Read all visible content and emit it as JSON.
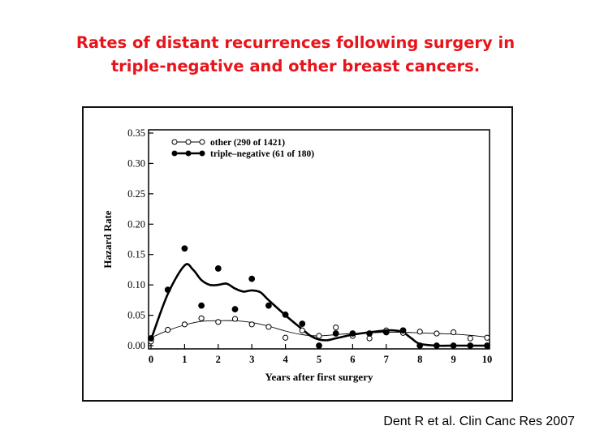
{
  "slide": {
    "title_line1": "Rates of distant recurrences following surgery in",
    "title_line2": "triple-negative and other breast cancers.",
    "citation": "Dent R et al. Clin Canc Res 2007",
    "title_color": "#e8141b"
  },
  "chart_data": {
    "type": "scatter",
    "title": "",
    "xlabel": "Years after first surgery",
    "ylabel": "Hazard Rate",
    "xlim": [
      0,
      10
    ],
    "ylim": [
      0,
      0.35
    ],
    "x_ticks": [
      "0",
      "1",
      "2",
      "3",
      "4",
      "5",
      "6",
      "7",
      "8",
      "9",
      "10"
    ],
    "y_ticks": [
      "0.00",
      "0.05",
      "0.10",
      "0.15",
      "0.20",
      "0.25",
      "0.30",
      "0.35"
    ],
    "legend_position": "top-left",
    "grid": false,
    "series": [
      {
        "name": "other (290 of 1421)",
        "marker": "open-circle",
        "line": "thin",
        "points": [
          [
            0,
            0.007
          ],
          [
            0.5,
            0.026
          ],
          [
            1,
            0.035
          ],
          [
            1.5,
            0.045
          ],
          [
            2,
            0.039
          ],
          [
            2.5,
            0.044
          ],
          [
            3,
            0.035
          ],
          [
            3.5,
            0.031
          ],
          [
            4,
            0.013
          ],
          [
            4.5,
            0.025
          ],
          [
            5,
            0.016
          ],
          [
            5.5,
            0.03
          ],
          [
            6,
            0.016
          ],
          [
            6.5,
            0.012
          ],
          [
            7,
            0.025
          ],
          [
            7.5,
            0.021
          ],
          [
            8,
            0.023
          ],
          [
            8.5,
            0.02
          ],
          [
            9,
            0.022
          ],
          [
            9.5,
            0.012
          ],
          [
            10,
            0.013
          ]
        ],
        "smooth_curve": [
          [
            0,
            0.013
          ],
          [
            0.5,
            0.025
          ],
          [
            1,
            0.034
          ],
          [
            1.5,
            0.04
          ],
          [
            2,
            0.041
          ],
          [
            2.5,
            0.041
          ],
          [
            3,
            0.038
          ],
          [
            3.5,
            0.032
          ],
          [
            4,
            0.024
          ],
          [
            4.5,
            0.018
          ],
          [
            5,
            0.016
          ],
          [
            5.5,
            0.018
          ],
          [
            6,
            0.02
          ],
          [
            6.5,
            0.021
          ],
          [
            7,
            0.022
          ],
          [
            7.5,
            0.022
          ],
          [
            8,
            0.021
          ],
          [
            8.5,
            0.02
          ],
          [
            9,
            0.019
          ],
          [
            9.5,
            0.017
          ],
          [
            10,
            0.014
          ]
        ]
      },
      {
        "name": "triple–negative (61 of 180)",
        "marker": "filled-circle",
        "line": "thick",
        "points": [
          [
            0,
            0.012
          ],
          [
            0.5,
            0.092
          ],
          [
            1,
            0.16
          ],
          [
            1.5,
            0.066
          ],
          [
            2,
            0.127
          ],
          [
            2.5,
            0.06
          ],
          [
            3,
            0.11
          ],
          [
            3.5,
            0.066
          ],
          [
            4,
            0.051
          ],
          [
            4.5,
            0.036
          ],
          [
            5,
            0.0
          ],
          [
            5.5,
            0.02
          ],
          [
            6,
            0.02
          ],
          [
            6.5,
            0.02
          ],
          [
            7,
            0.022
          ],
          [
            7.5,
            0.025
          ],
          [
            8,
            0.0
          ],
          [
            8.5,
            0.0
          ],
          [
            9,
            0.0
          ],
          [
            9.5,
            0.0
          ],
          [
            10,
            0.0
          ]
        ],
        "smooth_curve": [
          [
            0,
            0.01
          ],
          [
            0.5,
            0.085
          ],
          [
            1,
            0.132
          ],
          [
            1.25,
            0.125
          ],
          [
            1.5,
            0.108
          ],
          [
            1.75,
            0.1
          ],
          [
            2,
            0.1
          ],
          [
            2.25,
            0.102
          ],
          [
            2.5,
            0.094
          ],
          [
            2.75,
            0.089
          ],
          [
            3,
            0.091
          ],
          [
            3.25,
            0.088
          ],
          [
            3.5,
            0.075
          ],
          [
            4,
            0.05
          ],
          [
            4.5,
            0.027
          ],
          [
            4.75,
            0.016
          ],
          [
            5,
            0.01
          ],
          [
            5.25,
            0.009
          ],
          [
            5.5,
            0.012
          ],
          [
            6,
            0.018
          ],
          [
            6.5,
            0.022
          ],
          [
            7,
            0.025
          ],
          [
            7.25,
            0.025
          ],
          [
            7.5,
            0.022
          ],
          [
            7.75,
            0.012
          ],
          [
            8,
            0.003
          ],
          [
            8.5,
            0.0
          ],
          [
            9,
            0.0
          ],
          [
            9.5,
            0.0
          ],
          [
            10,
            0.0
          ]
        ]
      }
    ]
  }
}
